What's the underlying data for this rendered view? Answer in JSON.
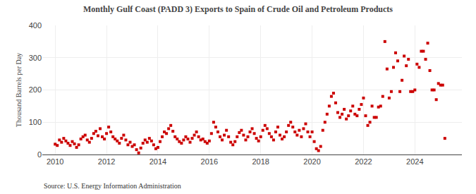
{
  "chart_data": {
    "type": "scatter",
    "title": "Monthly Gulf Coast (PADD 3) Exports to Spain of Crude Oil and Petroleum Products",
    "ylabel": "Thousand Barrels per Day",
    "annotations": [
      "Source: U.S. Energy Information Administration"
    ],
    "color": "#cc0000",
    "marker": "square",
    "grid": true,
    "xlim": [
      2009.5,
      2025.83
    ],
    "xticks": [
      2010,
      2012,
      2014,
      2016,
      2018,
      2020,
      2022,
      2024
    ],
    "ylim": [
      0,
      400
    ],
    "yticks": [
      0,
      100,
      200,
      300,
      400
    ],
    "x": [
      2010.0,
      2010.083,
      2010.167,
      2010.25,
      2010.333,
      2010.417,
      2010.5,
      2010.583,
      2010.667,
      2010.75,
      2010.833,
      2010.917,
      2011.0,
      2011.083,
      2011.167,
      2011.25,
      2011.333,
      2011.417,
      2011.5,
      2011.583,
      2011.667,
      2011.75,
      2011.833,
      2011.917,
      2012.0,
      2012.083,
      2012.167,
      2012.25,
      2012.333,
      2012.417,
      2012.5,
      2012.583,
      2012.667,
      2012.75,
      2012.833,
      2012.917,
      2013.0,
      2013.083,
      2013.167,
      2013.25,
      2013.333,
      2013.417,
      2013.5,
      2013.583,
      2013.667,
      2013.75,
      2013.833,
      2013.917,
      2014.0,
      2014.083,
      2014.167,
      2014.25,
      2014.333,
      2014.417,
      2014.5,
      2014.583,
      2014.667,
      2014.75,
      2014.833,
      2014.917,
      2015.0,
      2015.083,
      2015.167,
      2015.25,
      2015.333,
      2015.417,
      2015.5,
      2015.583,
      2015.667,
      2015.75,
      2015.833,
      2015.917,
      2016.0,
      2016.083,
      2016.167,
      2016.25,
      2016.333,
      2016.417,
      2016.5,
      2016.583,
      2016.667,
      2016.75,
      2016.833,
      2016.917,
      2017.0,
      2017.083,
      2017.167,
      2017.25,
      2017.333,
      2017.417,
      2017.5,
      2017.583,
      2017.667,
      2017.75,
      2017.833,
      2017.917,
      2018.0,
      2018.083,
      2018.167,
      2018.25,
      2018.333,
      2018.417,
      2018.5,
      2018.583,
      2018.667,
      2018.75,
      2018.833,
      2018.917,
      2019.0,
      2019.083,
      2019.167,
      2019.25,
      2019.333,
      2019.417,
      2019.5,
      2019.583,
      2019.667,
      2019.75,
      2019.833,
      2019.917,
      2020.0,
      2020.083,
      2020.167,
      2020.25,
      2020.333,
      2020.417,
      2020.5,
      2020.583,
      2020.667,
      2020.75,
      2020.833,
      2020.917,
      2021.0,
      2021.083,
      2021.167,
      2021.25,
      2021.333,
      2021.417,
      2021.5,
      2021.583,
      2021.667,
      2021.75,
      2021.833,
      2021.917,
      2022.0,
      2022.083,
      2022.167,
      2022.25,
      2022.333,
      2022.417,
      2022.5,
      2022.583,
      2022.667,
      2022.75,
      2022.833,
      2022.917,
      2023.0,
      2023.083,
      2023.167,
      2023.25,
      2023.333,
      2023.417,
      2023.5,
      2023.583,
      2023.667,
      2023.75,
      2023.833,
      2023.917,
      2024.0,
      2024.083,
      2024.167,
      2024.25,
      2024.333,
      2024.417,
      2024.5,
      2024.583,
      2024.667,
      2024.75,
      2024.833,
      2024.917,
      2025.0,
      2025.083,
      2025.167
    ],
    "values": [
      32,
      28,
      45,
      38,
      50,
      42,
      35,
      28,
      40,
      33,
      22,
      30,
      48,
      55,
      60,
      45,
      38,
      50,
      65,
      72,
      58,
      80,
      55,
      48,
      65,
      85,
      70,
      55,
      48,
      42,
      35,
      50,
      60,
      45,
      30,
      38,
      25,
      30,
      15,
      5,
      20,
      35,
      45,
      38,
      50,
      42,
      30,
      18,
      22,
      40,
      55,
      70,
      65,
      80,
      90,
      72,
      55,
      48,
      40,
      35,
      45,
      55,
      48,
      38,
      50,
      60,
      70,
      55,
      45,
      48,
      40,
      35,
      42,
      65,
      100,
      85,
      70,
      55,
      45,
      60,
      75,
      55,
      38,
      30,
      40,
      55,
      68,
      75,
      60,
      45,
      55,
      70,
      80,
      65,
      50,
      42,
      55,
      75,
      90,
      80,
      65,
      55,
      45,
      70,
      85,
      60,
      48,
      55,
      70,
      90,
      100,
      85,
      70,
      60,
      75,
      55,
      80,
      95,
      70,
      55,
      70,
      40,
      18,
      12,
      25,
      75,
      100,
      125,
      150,
      180,
      190,
      160,
      130,
      115,
      125,
      140,
      110,
      120,
      135,
      150,
      125,
      120,
      140,
      155,
      175,
      120,
      90,
      100,
      150,
      115,
      115,
      147,
      150,
      180,
      350,
      265,
      175,
      195,
      270,
      315,
      290,
      195,
      230,
      305,
      275,
      295,
      195,
      195,
      200,
      280,
      270,
      320,
      320,
      295,
      345,
      260,
      200,
      200,
      170,
      220,
      215,
      215,
      50
    ]
  }
}
